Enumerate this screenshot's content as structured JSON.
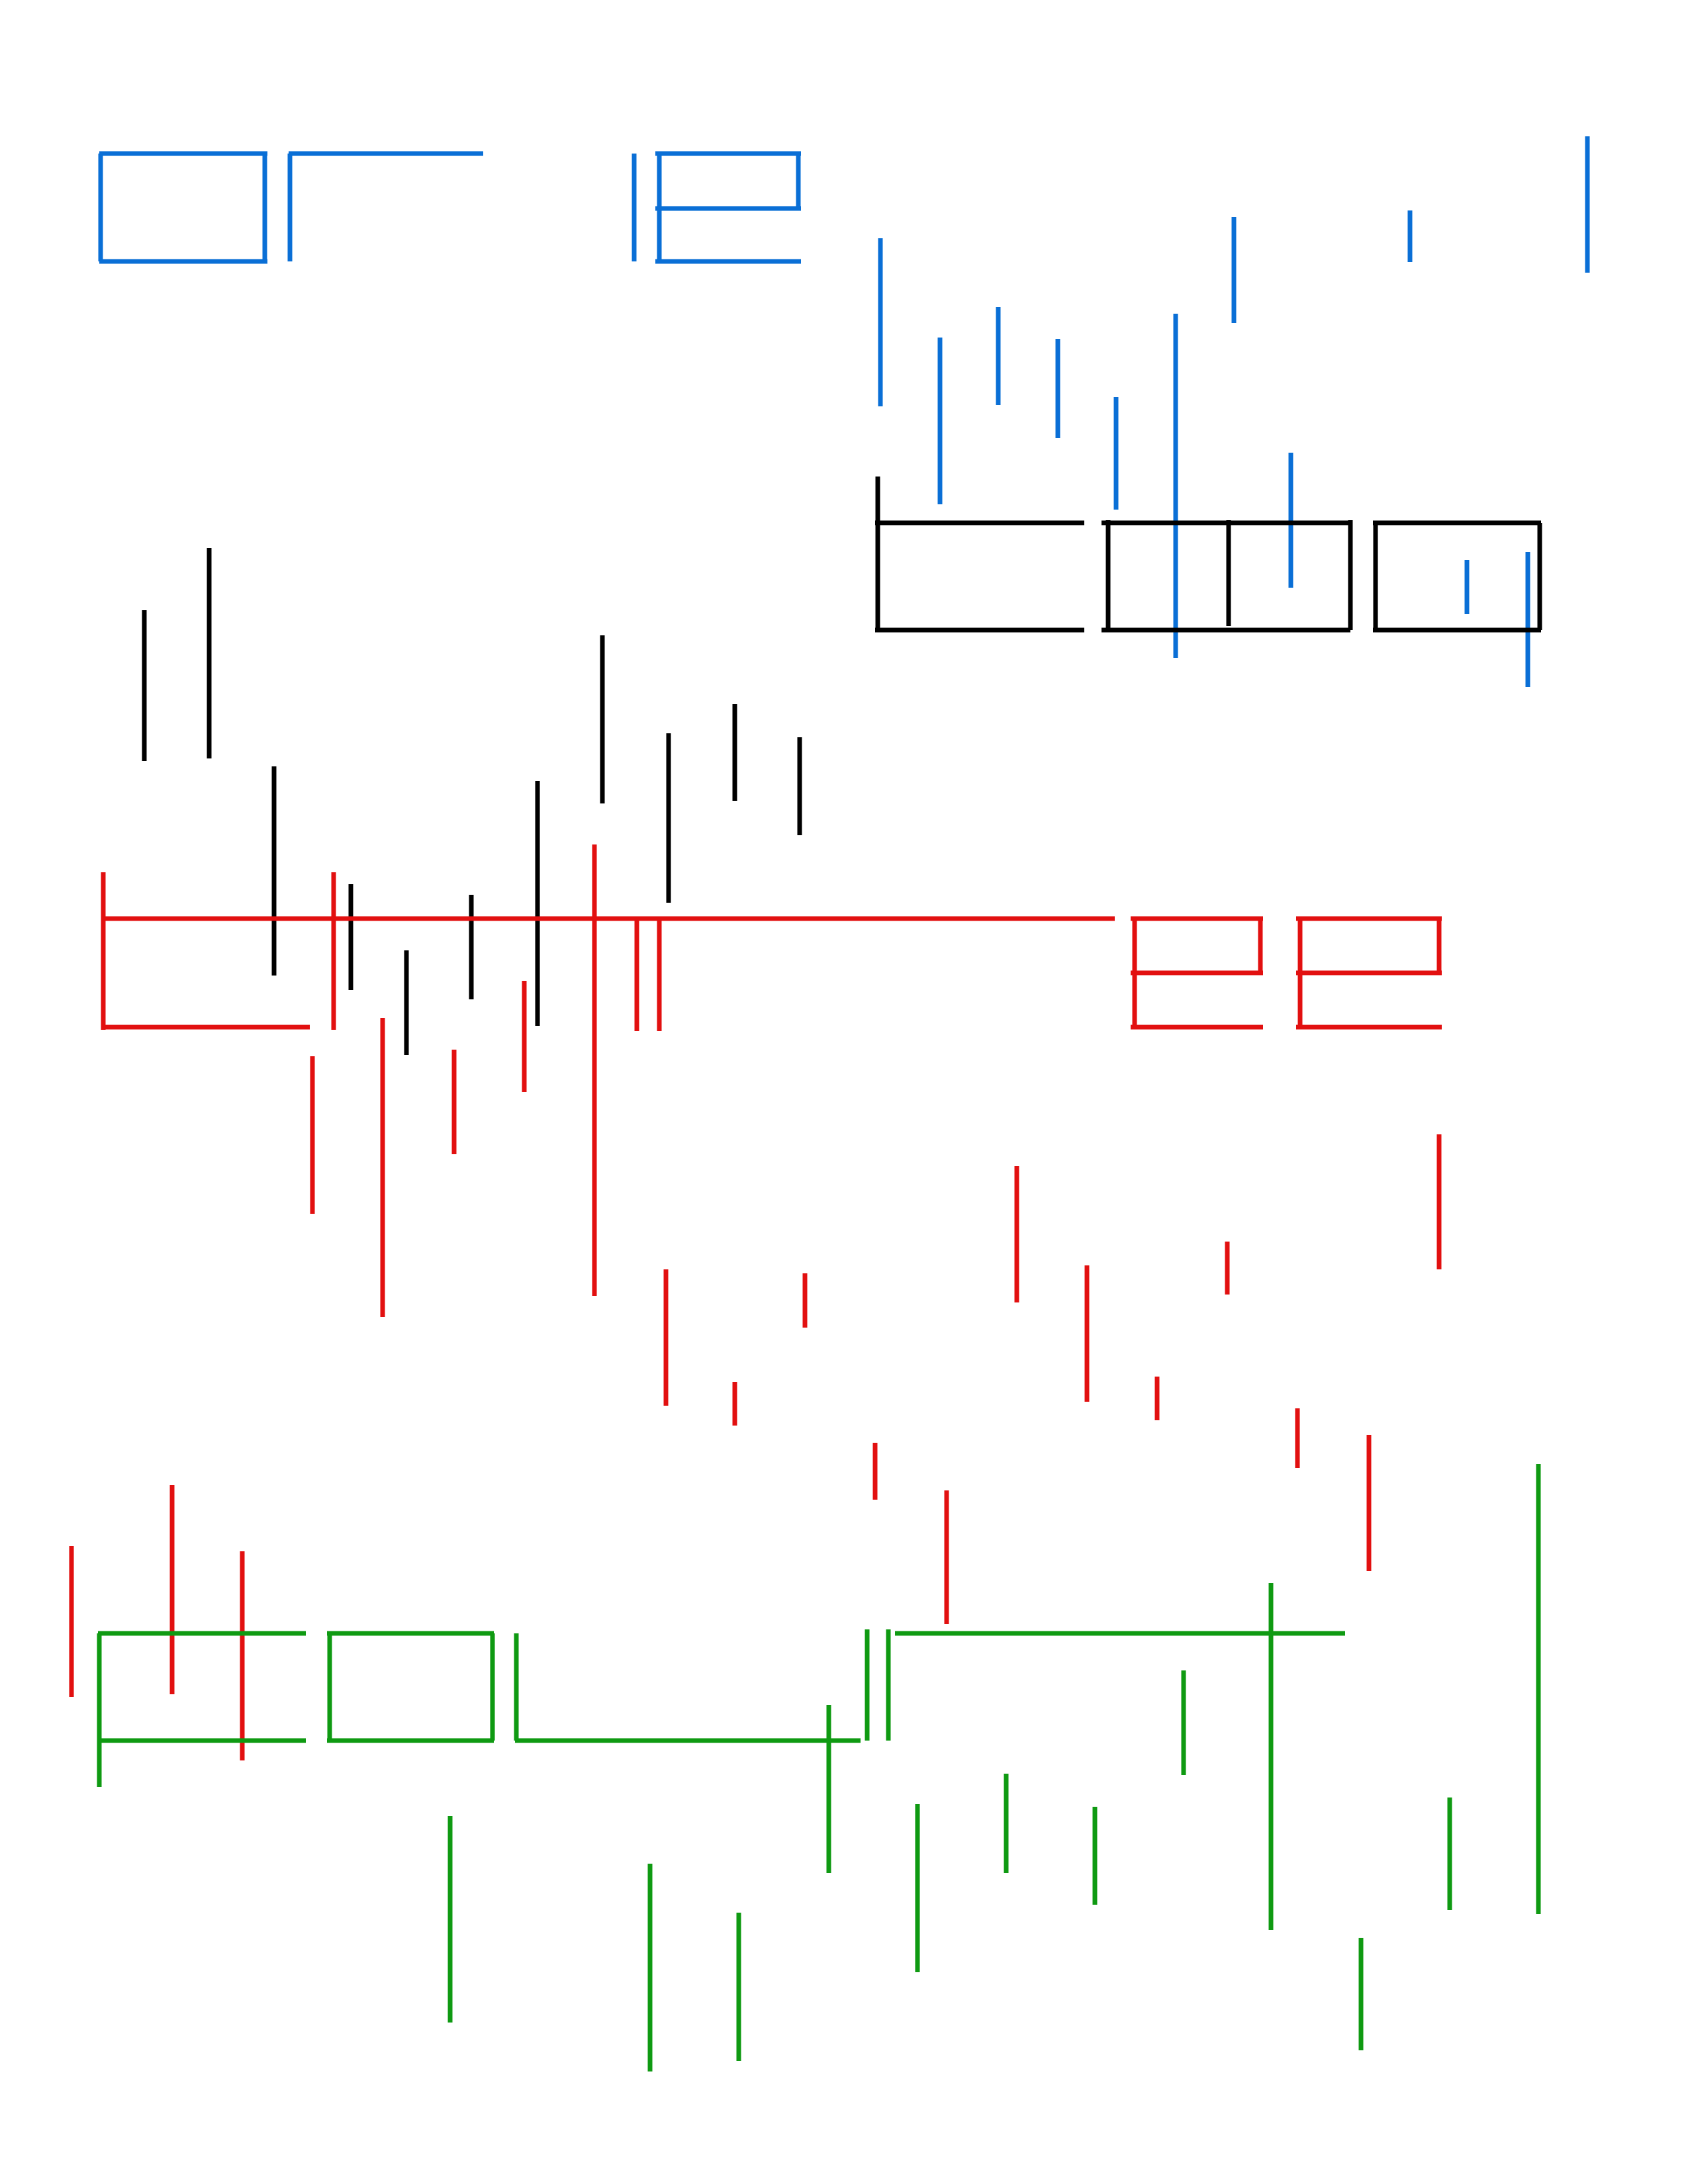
{
  "words": [
    {
      "text": "one",
      "color": "#0a6fd6"
    },
    {
      "text": "two",
      "color": "#000000"
    },
    {
      "text": "three",
      "color": "#e21010"
    },
    {
      "text": "four",
      "color": "#0f9a12"
    }
  ]
}
